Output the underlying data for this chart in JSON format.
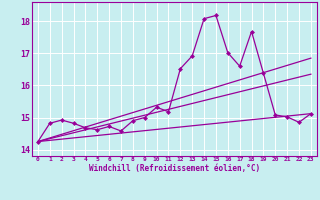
{
  "xlabel": "Windchill (Refroidissement éolien,°C)",
  "bg_color": "#c8eef0",
  "grid_color": "#ffffff",
  "line_color": "#990099",
  "xlim": [
    -0.5,
    23.5
  ],
  "ylim": [
    13.8,
    18.6
  ],
  "yticks": [
    14,
    15,
    16,
    17,
    18
  ],
  "xticks": [
    0,
    1,
    2,
    3,
    4,
    5,
    6,
    7,
    8,
    9,
    10,
    11,
    12,
    13,
    14,
    15,
    16,
    17,
    18,
    19,
    20,
    21,
    22,
    23
  ],
  "line1_x": [
    0,
    1,
    2,
    3,
    4,
    5,
    6,
    7,
    8,
    9,
    10,
    11,
    12,
    13,
    14,
    15,
    16,
    17,
    18,
    19,
    20,
    21,
    22,
    23
  ],
  "line1_y": [
    14.25,
    14.82,
    14.92,
    14.82,
    14.68,
    14.62,
    14.72,
    14.58,
    14.9,
    15.0,
    15.32,
    15.18,
    16.52,
    16.92,
    18.08,
    18.18,
    17.02,
    16.6,
    17.68,
    16.38,
    15.08,
    15.02,
    14.85,
    15.12
  ],
  "line2_x": [
    0,
    23
  ],
  "line2_y": [
    14.25,
    16.85
  ],
  "line3_x": [
    0,
    23
  ],
  "line3_y": [
    14.25,
    16.35
  ],
  "line4_x": [
    0,
    23
  ],
  "line4_y": [
    14.25,
    15.12
  ],
  "marker": "D",
  "markersize": 2.0,
  "linewidth": 0.9
}
